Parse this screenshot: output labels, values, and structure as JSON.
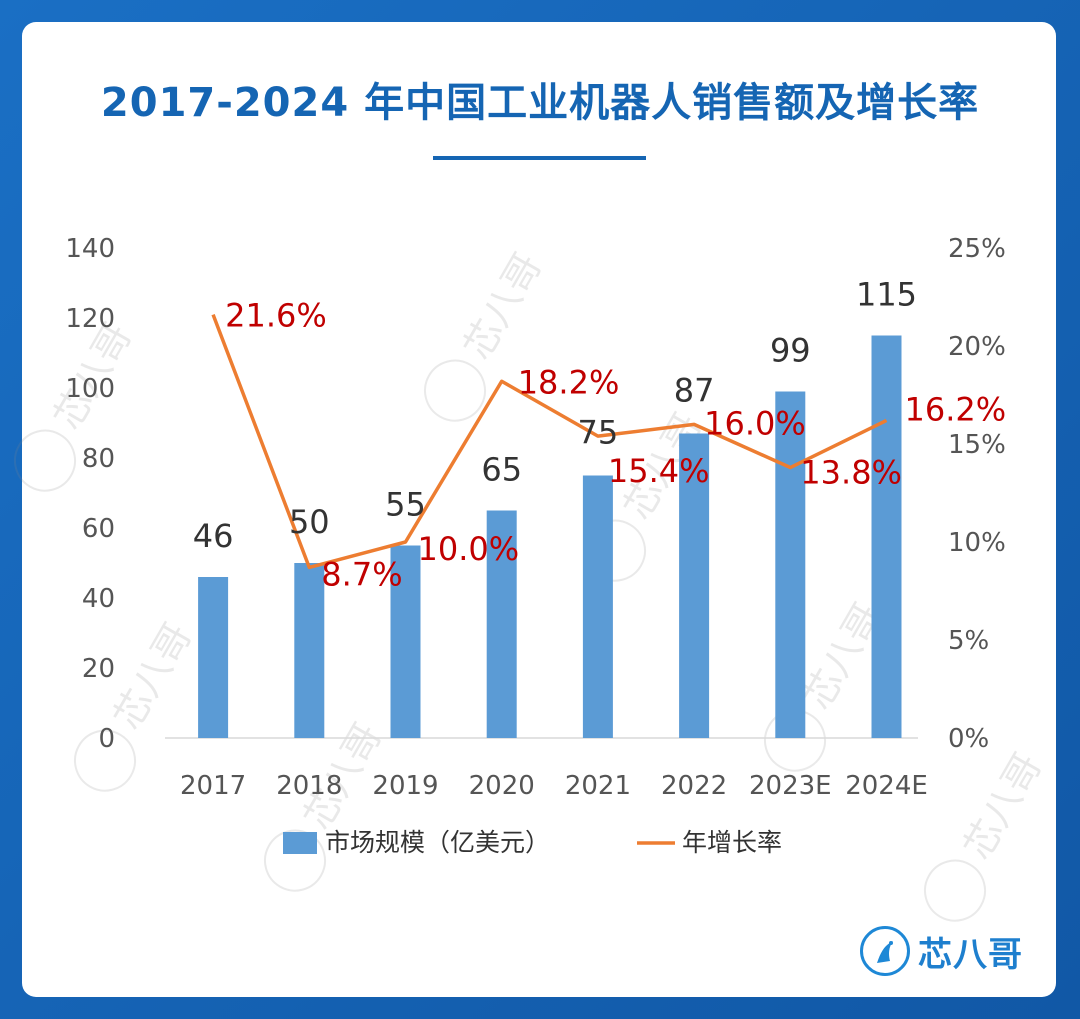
{
  "title": "2017-2024 年中国工业机器人销售额及增长率",
  "brand": {
    "name": "芯八哥",
    "watermark": "芯八哥"
  },
  "colors": {
    "bar": "#5b9bd5",
    "line": "#ed7d31",
    "rate_label": "#c00000",
    "accent": "#1565b3"
  },
  "chart_data": {
    "type": "bar",
    "title": "2017-2024 年中国工业机器人销售额及增长率",
    "categories": [
      "2017",
      "2018",
      "2019",
      "2020",
      "2021",
      "2022",
      "2023E",
      "2024E"
    ],
    "series": [
      {
        "name": "市场规模（亿美元）",
        "type": "bar",
        "axis": "left",
        "values": [
          46,
          50,
          55,
          65,
          75,
          87,
          99,
          115
        ],
        "labels": [
          "46",
          "50",
          "55",
          "65",
          "75",
          "87",
          "99",
          "115"
        ]
      },
      {
        "name": "年增长率",
        "type": "line",
        "axis": "right",
        "values": [
          21.6,
          8.7,
          10.0,
          18.2,
          15.4,
          16.0,
          13.8,
          16.2
        ],
        "labels": [
          "21.6%",
          "8.7%",
          "10.0%",
          "18.2%",
          "15.4%",
          "16.0%",
          "13.8%",
          "16.2%"
        ]
      }
    ],
    "y_left": {
      "ylim": [
        0,
        140
      ],
      "ticks": [
        "0",
        "20",
        "40",
        "60",
        "80",
        "100",
        "120",
        "140"
      ]
    },
    "y_right": {
      "ylim": [
        0,
        25
      ],
      "ticks": [
        "0%",
        "5%",
        "10%",
        "15%",
        "20%",
        "25%"
      ]
    },
    "grid": false,
    "legend": "bottom"
  }
}
